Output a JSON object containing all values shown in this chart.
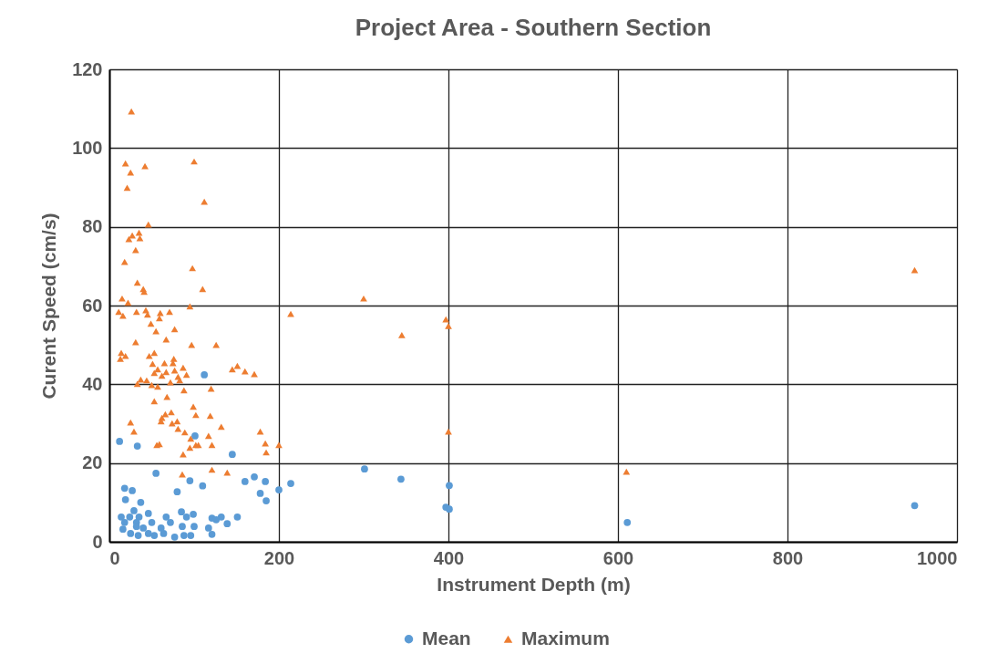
{
  "chart_data": {
    "type": "scatter",
    "title": "Project Area - Southern Section",
    "xlabel": "Instrument Depth (m)",
    "ylabel": "Curent Speed (cm/s)",
    "xlim": [
      0,
      1000
    ],
    "xticks": [
      0,
      200,
      400,
      600,
      800,
      1000
    ],
    "ylim": [
      0,
      120
    ],
    "yticks": [
      0,
      20,
      40,
      60,
      80,
      100,
      120
    ],
    "grid": true,
    "legend": "bottom",
    "series": [
      {
        "name": "Mean",
        "color": "#5b9bd5",
        "marker": "circle",
        "x": [
          112,
          101,
          12,
          33,
          145,
          55,
          95,
          110,
          160,
          171,
          184,
          200,
          214,
          18,
          27,
          80,
          178,
          185,
          19,
          37,
          29,
          46,
          85,
          99,
          151,
          132,
          121,
          126,
          91,
          14,
          24,
          35,
          67,
          18,
          32,
          50,
          72,
          139,
          16,
          40,
          61,
          86,
          100,
          117,
          25,
          46,
          64,
          77,
          96,
          34,
          121,
          88,
          53,
          32,
          301,
          344,
          401,
          397,
          401,
          611,
          950
        ],
        "values": [
          42.4,
          26.9,
          25.5,
          24.3,
          22.2,
          17.4,
          15.5,
          14.2,
          15.3,
          16.5,
          15.3,
          13.2,
          14.8,
          13.6,
          13,
          12.7,
          12.3,
          10.4,
          10.7,
          10,
          7.9,
          7.2,
          7.6,
          7,
          6.3,
          6.3,
          6,
          5.6,
          6.3,
          6.3,
          6.3,
          6.3,
          6.3,
          4.9,
          4.9,
          4.9,
          4.9,
          4.6,
          3.2,
          3.5,
          3.5,
          3.9,
          3.9,
          3.5,
          2.1,
          2.1,
          2.1,
          1.2,
          1.6,
          1.6,
          1.9,
          1.6,
          1.6,
          3.9,
          18.5,
          15.9,
          14.3,
          8.8,
          8.3,
          4.9,
          9.2
        ]
      },
      {
        "name": "Maximum",
        "color": "#ed7d31",
        "marker": "triangle",
        "x": [
          26,
          19,
          42,
          100,
          25,
          21,
          112,
          46,
          35,
          27,
          23,
          36,
          31,
          18,
          98,
          33,
          40,
          41,
          110,
          15,
          22,
          95,
          11,
          16,
          32,
          43,
          45,
          59,
          60,
          71,
          49,
          55,
          77,
          31,
          67,
          97,
          126,
          14,
          19,
          13,
          47,
          53,
          76,
          75,
          51,
          65,
          87,
          77,
          57,
          67,
          53,
          91,
          62,
          81,
          83,
          145,
          151,
          160,
          171,
          37,
          44,
          33,
          50,
          57,
          72,
          88,
          120,
          53,
          68,
          99,
          102,
          119,
          66,
          73,
          62,
          61,
          25,
          74,
          80,
          81,
          29,
          89,
          132,
          117,
          96,
          178,
          184,
          200,
          185,
          56,
          59,
          95,
          102,
          105,
          121,
          87,
          86,
          121,
          139,
          214,
          300,
          345,
          397,
          400,
          400,
          610,
          950
        ],
        "values": [
          109.3,
          96.1,
          95.4,
          96.6,
          93.8,
          89.9,
          86.4,
          80.6,
          78.5,
          77.8,
          76.9,
          77.1,
          74.1,
          71.1,
          69.5,
          65.8,
          64.2,
          63.5,
          64.2,
          61.8,
          60.7,
          59.8,
          58.4,
          57.4,
          58.4,
          58.8,
          57.7,
          56.8,
          58.1,
          58.4,
          55.4,
          53.5,
          54,
          50.7,
          51.4,
          50,
          50,
          48,
          47.2,
          46.5,
          47.2,
          48,
          46.5,
          45.4,
          45.2,
          45.4,
          44.2,
          43.5,
          43.8,
          43.1,
          42.9,
          42.4,
          42.2,
          41.9,
          41,
          43.8,
          44.7,
          43.3,
          42.6,
          41.2,
          41,
          40.1,
          39.8,
          39.4,
          40.5,
          38.5,
          38.9,
          35.7,
          36.8,
          34.3,
          32.2,
          32,
          32.4,
          32.9,
          31.5,
          30.6,
          30.3,
          30.1,
          30.6,
          28.7,
          28,
          27.8,
          29.2,
          26.9,
          26.2,
          28,
          25,
          24.6,
          22.7,
          24.6,
          24.8,
          23.9,
          24.6,
          24.6,
          24.6,
          22.2,
          17.1,
          18.3,
          17.6,
          57.9,
          61.8,
          52.5,
          56.5,
          54.8,
          28,
          17.8,
          69
        ]
      }
    ]
  }
}
